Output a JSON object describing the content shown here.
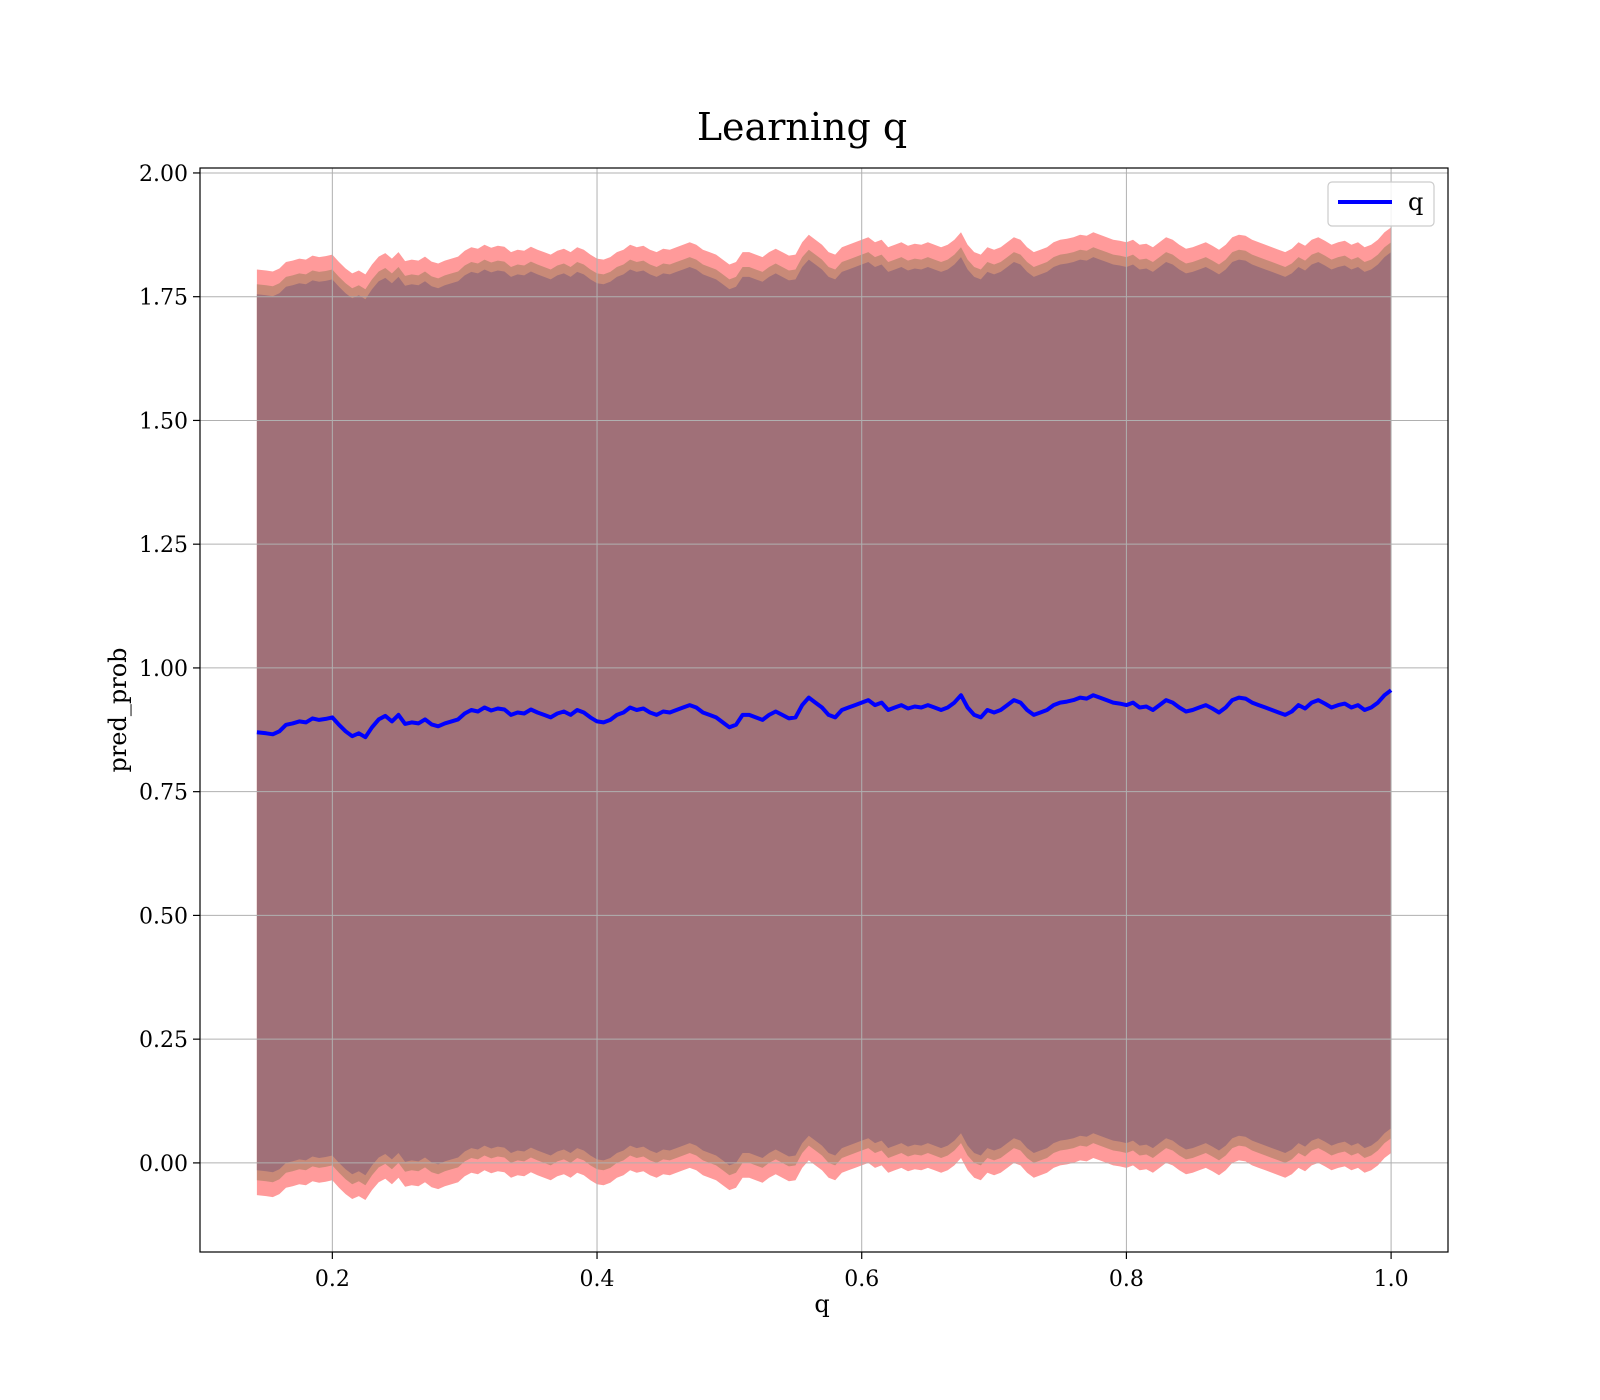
{
  "chart_data": {
    "type": "area",
    "title": "Learning q",
    "xlabel": "q",
    "ylabel": "pred_prob",
    "xlim": [
      0.1,
      1.043
    ],
    "ylim": [
      -0.18,
      2.01
    ],
    "xticks": [
      0.2,
      0.4,
      0.6,
      0.8,
      1.0
    ],
    "xtick_labels": [
      "0.2",
      "0.4",
      "0.6",
      "0.8",
      "1.0"
    ],
    "yticks": [
      0.0,
      0.25,
      0.5,
      0.75,
      1.0,
      1.25,
      1.5,
      1.75,
      2.0
    ],
    "ytick_labels": [
      "0.00",
      "0.25",
      "0.50",
      "0.75",
      "1.00",
      "1.25",
      "1.50",
      "1.75",
      "2.00"
    ],
    "grid": true,
    "legend_position": "top-right",
    "colors": {
      "line": "#0000ff",
      "band_outer": "#ff9a9a",
      "band_mid": "#c98a78",
      "band_inner": "#a07078"
    },
    "band_offsets_outer": 0.935,
    "band_offsets_mid": 0.905,
    "band_offsets_inner": 0.885,
    "series": [
      {
        "name": "q",
        "x": [
          0.143,
          0.15,
          0.155,
          0.16,
          0.165,
          0.17,
          0.175,
          0.18,
          0.185,
          0.19,
          0.195,
          0.2,
          0.205,
          0.21,
          0.215,
          0.22,
          0.225,
          0.23,
          0.235,
          0.24,
          0.245,
          0.25,
          0.255,
          0.26,
          0.265,
          0.27,
          0.275,
          0.28,
          0.285,
          0.29,
          0.295,
          0.3,
          0.305,
          0.31,
          0.315,
          0.32,
          0.325,
          0.33,
          0.335,
          0.34,
          0.345,
          0.35,
          0.355,
          0.36,
          0.365,
          0.37,
          0.375,
          0.38,
          0.385,
          0.39,
          0.395,
          0.4,
          0.405,
          0.41,
          0.415,
          0.42,
          0.425,
          0.43,
          0.435,
          0.44,
          0.445,
          0.45,
          0.455,
          0.46,
          0.465,
          0.47,
          0.475,
          0.48,
          0.485,
          0.49,
          0.495,
          0.5,
          0.505,
          0.51,
          0.515,
          0.52,
          0.525,
          0.53,
          0.535,
          0.54,
          0.545,
          0.55,
          0.555,
          0.56,
          0.565,
          0.57,
          0.575,
          0.58,
          0.585,
          0.59,
          0.595,
          0.6,
          0.605,
          0.61,
          0.615,
          0.62,
          0.625,
          0.63,
          0.635,
          0.64,
          0.645,
          0.65,
          0.655,
          0.66,
          0.665,
          0.67,
          0.675,
          0.68,
          0.685,
          0.69,
          0.695,
          0.7,
          0.705,
          0.71,
          0.715,
          0.72,
          0.725,
          0.73,
          0.735,
          0.74,
          0.745,
          0.75,
          0.755,
          0.76,
          0.765,
          0.77,
          0.775,
          0.78,
          0.785,
          0.79,
          0.795,
          0.8,
          0.805,
          0.81,
          0.815,
          0.82,
          0.825,
          0.83,
          0.835,
          0.84,
          0.845,
          0.85,
          0.855,
          0.86,
          0.865,
          0.87,
          0.875,
          0.88,
          0.885,
          0.89,
          0.895,
          0.9,
          0.905,
          0.91,
          0.915,
          0.92,
          0.925,
          0.93,
          0.935,
          0.94,
          0.945,
          0.95,
          0.955,
          0.96,
          0.965,
          0.97,
          0.975,
          0.98,
          0.985,
          0.99,
          0.995,
          1.0
        ],
        "y": [
          0.87,
          0.868,
          0.866,
          0.872,
          0.885,
          0.888,
          0.892,
          0.89,
          0.898,
          0.895,
          0.897,
          0.9,
          0.885,
          0.872,
          0.862,
          0.868,
          0.86,
          0.88,
          0.896,
          0.903,
          0.892,
          0.905,
          0.887,
          0.89,
          0.888,
          0.896,
          0.886,
          0.882,
          0.888,
          0.892,
          0.896,
          0.908,
          0.915,
          0.912,
          0.92,
          0.914,
          0.918,
          0.916,
          0.905,
          0.91,
          0.908,
          0.916,
          0.91,
          0.905,
          0.9,
          0.908,
          0.912,
          0.905,
          0.915,
          0.91,
          0.9,
          0.892,
          0.89,
          0.895,
          0.905,
          0.91,
          0.92,
          0.915,
          0.918,
          0.91,
          0.905,
          0.912,
          0.91,
          0.915,
          0.92,
          0.925,
          0.92,
          0.91,
          0.905,
          0.9,
          0.89,
          0.88,
          0.885,
          0.905,
          0.905,
          0.9,
          0.895,
          0.905,
          0.912,
          0.905,
          0.898,
          0.9,
          0.925,
          0.94,
          0.93,
          0.92,
          0.905,
          0.9,
          0.915,
          0.92,
          0.925,
          0.93,
          0.935,
          0.925,
          0.93,
          0.915,
          0.92,
          0.925,
          0.918,
          0.922,
          0.92,
          0.925,
          0.92,
          0.915,
          0.92,
          0.93,
          0.945,
          0.92,
          0.905,
          0.9,
          0.915,
          0.91,
          0.915,
          0.925,
          0.935,
          0.93,
          0.915,
          0.905,
          0.91,
          0.915,
          0.925,
          0.93,
          0.932,
          0.935,
          0.94,
          0.938,
          0.945,
          0.94,
          0.935,
          0.93,
          0.928,
          0.925,
          0.93,
          0.92,
          0.922,
          0.915,
          0.925,
          0.935,
          0.93,
          0.92,
          0.912,
          0.915,
          0.92,
          0.925,
          0.918,
          0.91,
          0.92,
          0.935,
          0.94,
          0.938,
          0.93,
          0.925,
          0.92,
          0.915,
          0.91,
          0.905,
          0.912,
          0.925,
          0.918,
          0.93,
          0.935,
          0.928,
          0.92,
          0.925,
          0.928,
          0.92,
          0.925,
          0.915,
          0.92,
          0.93,
          0.945,
          0.955
        ]
      }
    ]
  }
}
